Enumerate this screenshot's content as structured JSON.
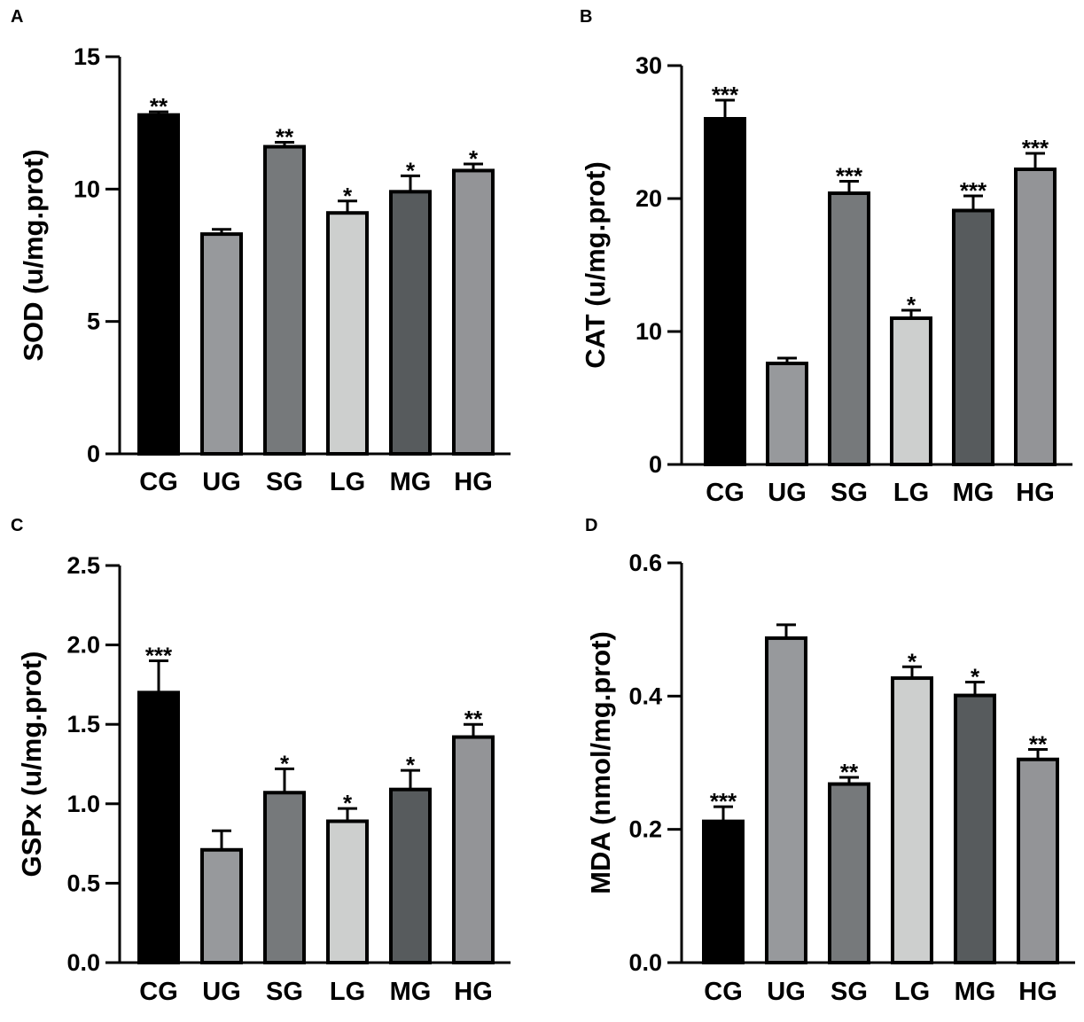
{
  "colors": {
    "CG": "#000000",
    "UG": "#97999c",
    "SG": "#76797b",
    "LG": "#cdcfce",
    "MG": "#575b5d",
    "HG": "#939497"
  },
  "chart_data": [
    {
      "type": "bar",
      "panel": "A",
      "categories": [
        "CG",
        "UG",
        "SG",
        "LG",
        "MG",
        "HG"
      ],
      "values": [
        12.8,
        8.3,
        11.6,
        9.1,
        9.9,
        10.7
      ],
      "errors": [
        0.12,
        0.18,
        0.17,
        0.45,
        0.6,
        0.25
      ],
      "significance": [
        "**",
        "",
        "**",
        "*",
        "*",
        "*"
      ],
      "ylabel": "SOD (u/mg.prot)",
      "ylim": [
        0,
        15
      ],
      "yticks": [
        0,
        5,
        10,
        15
      ],
      "ytick_labels": [
        "0",
        "5",
        "10",
        "15"
      ]
    },
    {
      "type": "bar",
      "panel": "B",
      "categories": [
        "CG",
        "UG",
        "SG",
        "LG",
        "MG",
        "HG"
      ],
      "values": [
        26.0,
        7.6,
        20.4,
        11.0,
        19.1,
        22.2
      ],
      "errors": [
        1.4,
        0.4,
        0.9,
        0.6,
        1.1,
        1.2
      ],
      "significance": [
        "***",
        "",
        "***",
        "*",
        "***",
        "***"
      ],
      "ylabel": "CAT (u/mg.prot)",
      "ylim": [
        0,
        30
      ],
      "yticks": [
        0,
        10,
        20,
        30
      ],
      "ytick_labels": [
        "0",
        "10",
        "20",
        "30"
      ]
    },
    {
      "type": "bar",
      "panel": "C",
      "categories": [
        "CG",
        "UG",
        "SG",
        "LG",
        "MG",
        "HG"
      ],
      "values": [
        1.7,
        0.71,
        1.07,
        0.89,
        1.09,
        1.42
      ],
      "errors": [
        0.2,
        0.12,
        0.15,
        0.08,
        0.12,
        0.08
      ],
      "significance": [
        "***",
        "",
        "*",
        "*",
        "*",
        "**"
      ],
      "ylabel": "GSPx (u/mg.prot)",
      "ylim": [
        0,
        2.5
      ],
      "yticks": [
        0,
        0.5,
        1.0,
        1.5,
        2.0,
        2.5
      ],
      "ytick_labels": [
        "0.0",
        "0.5",
        "1.0",
        "1.5",
        "2.0",
        "2.5"
      ]
    },
    {
      "type": "bar",
      "panel": "D",
      "categories": [
        "CG",
        "UG",
        "SG",
        "LG",
        "MG",
        "HG"
      ],
      "values": [
        0.212,
        0.487,
        0.268,
        0.427,
        0.401,
        0.305
      ],
      "errors": [
        0.022,
        0.02,
        0.01,
        0.017,
        0.02,
        0.015
      ],
      "significance": [
        "***",
        "",
        "**",
        "*",
        "*",
        "**"
      ],
      "ylabel": "MDA (nmol/mg.prot)",
      "ylim": [
        0,
        0.6
      ],
      "yticks": [
        0,
        0.2,
        0.4,
        0.6
      ],
      "ytick_labels": [
        "0.0",
        "0.2",
        "0.4",
        "0.6"
      ]
    }
  ]
}
